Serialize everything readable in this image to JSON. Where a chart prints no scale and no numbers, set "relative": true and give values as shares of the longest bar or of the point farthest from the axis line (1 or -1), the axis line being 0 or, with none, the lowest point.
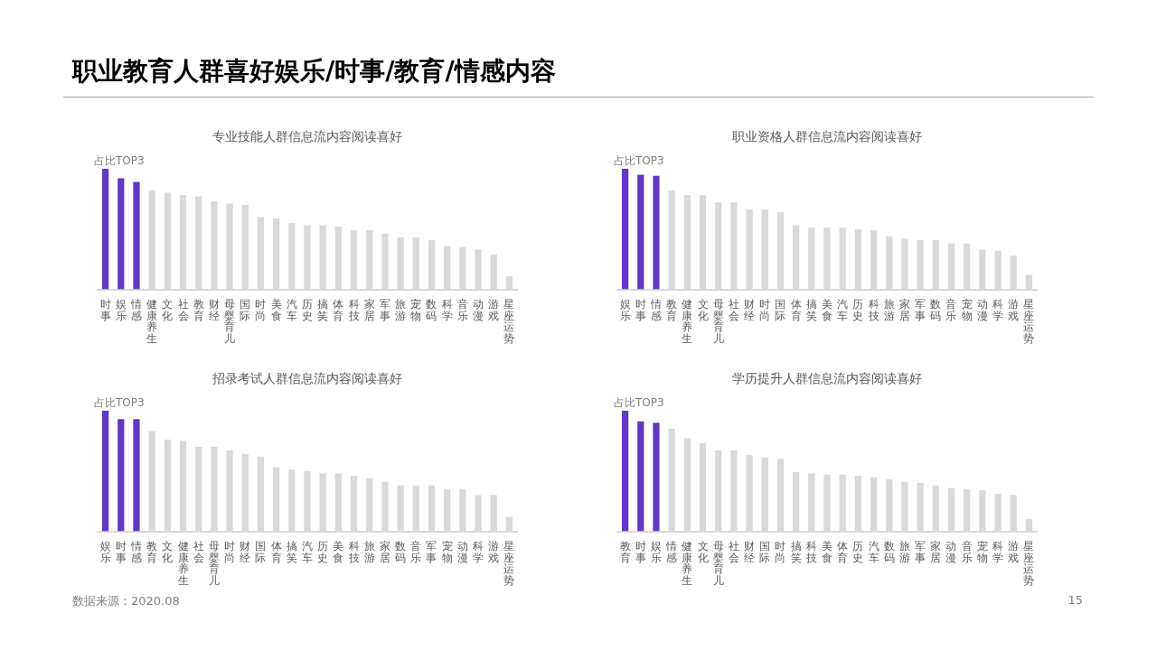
{
  "chart_data": [
    {
      "type": "other",
      "title": "职业教育人群喜好娱乐/时事/教育/情感内容",
      "annotations": [
        "数据来源：2020.08",
        "15"
      ]
    },
    {
      "type": "bar",
      "relative": true,
      "title": "专业技能人群信息流内容阅读喜好",
      "annotations": [
        "占比TOP3"
      ],
      "categories": [
        "时事",
        "娱乐",
        "情感",
        "健康养生",
        "文化",
        "社会",
        "教育",
        "财经",
        "母婴育儿",
        "国际",
        "时尚",
        "美食",
        "汽车",
        "历史",
        "搞笑",
        "体育",
        "科技",
        "家居",
        "军事",
        "旅游",
        "宠物",
        "数码",
        "科学",
        "音乐",
        "动漫",
        "游戏",
        "星座运势"
      ],
      "values": [
        1,
        0.92,
        0.89,
        0.82,
        0.8,
        0.78,
        0.77,
        0.73,
        0.71,
        0.7,
        0.6,
        0.59,
        0.55,
        0.53,
        0.53,
        0.52,
        0.49,
        0.49,
        0.46,
        0.43,
        0.43,
        0.41,
        0.36,
        0.35,
        0.33,
        0.29,
        0.11
      ],
      "colors": [
        "#6236c8",
        "#6236c8",
        "#6236c8",
        "#d9d9d9",
        "#d9d9d9",
        "#d9d9d9",
        "#d9d9d9",
        "#d9d9d9",
        "#d9d9d9",
        "#d9d9d9",
        "#d9d9d9",
        "#d9d9d9",
        "#d9d9d9",
        "#d9d9d9",
        "#d9d9d9",
        "#d9d9d9",
        "#d9d9d9",
        "#d9d9d9",
        "#d9d9d9",
        "#d9d9d9",
        "#d9d9d9",
        "#d9d9d9",
        "#d9d9d9",
        "#d9d9d9",
        "#d9d9d9",
        "#d9d9d9",
        "#d9d9d9"
      ]
    },
    {
      "type": "bar",
      "relative": true,
      "title": "职业资格人群信息流内容阅读喜好",
      "annotations": [
        "占比TOP3"
      ],
      "categories": [
        "娱乐",
        "时事",
        "情感",
        "教育",
        "健康养生",
        "文化",
        "母婴育儿",
        "社会",
        "财经",
        "时尚",
        "国际",
        "体育",
        "搞笑",
        "美食",
        "汽车",
        "历史",
        "科技",
        "旅游",
        "家居",
        "军事",
        "数码",
        "音乐",
        "宠物",
        "动漫",
        "科学",
        "游戏",
        "星座运势"
      ],
      "values": [
        1,
        0.95,
        0.94,
        0.82,
        0.78,
        0.78,
        0.72,
        0.72,
        0.66,
        0.66,
        0.64,
        0.53,
        0.51,
        0.51,
        0.51,
        0.5,
        0.49,
        0.44,
        0.42,
        0.41,
        0.41,
        0.38,
        0.38,
        0.33,
        0.32,
        0.28,
        0.12
      ],
      "colors": [
        "#6236c8",
        "#6236c8",
        "#6236c8",
        "#d9d9d9",
        "#d9d9d9",
        "#d9d9d9",
        "#d9d9d9",
        "#d9d9d9",
        "#d9d9d9",
        "#d9d9d9",
        "#d9d9d9",
        "#d9d9d9",
        "#d9d9d9",
        "#d9d9d9",
        "#d9d9d9",
        "#d9d9d9",
        "#d9d9d9",
        "#d9d9d9",
        "#d9d9d9",
        "#d9d9d9",
        "#d9d9d9",
        "#d9d9d9",
        "#d9d9d9",
        "#d9d9d9",
        "#d9d9d9",
        "#d9d9d9",
        "#d9d9d9"
      ]
    },
    {
      "type": "bar",
      "relative": true,
      "title": "招录考试人群信息流内容阅读喜好",
      "annotations": [
        "占比TOP3"
      ],
      "categories": [
        "娱乐",
        "时事",
        "情感",
        "教育",
        "文化",
        "健康养生",
        "社会",
        "母婴育儿",
        "时尚",
        "财经",
        "国际",
        "体育",
        "搞笑",
        "汽车",
        "历史",
        "美食",
        "科技",
        "旅游",
        "家居",
        "数码",
        "音乐",
        "军事",
        "宠物",
        "动漫",
        "科学",
        "游戏",
        "星座运势"
      ],
      "values": [
        1,
        0.93,
        0.93,
        0.83,
        0.76,
        0.75,
        0.7,
        0.7,
        0.67,
        0.64,
        0.62,
        0.53,
        0.51,
        0.5,
        0.48,
        0.48,
        0.46,
        0.44,
        0.41,
        0.38,
        0.38,
        0.38,
        0.35,
        0.35,
        0.3,
        0.3,
        0.12
      ],
      "colors": [
        "#6236c8",
        "#6236c8",
        "#6236c8",
        "#d9d9d9",
        "#d9d9d9",
        "#d9d9d9",
        "#d9d9d9",
        "#d9d9d9",
        "#d9d9d9",
        "#d9d9d9",
        "#d9d9d9",
        "#d9d9d9",
        "#d9d9d9",
        "#d9d9d9",
        "#d9d9d9",
        "#d9d9d9",
        "#d9d9d9",
        "#d9d9d9",
        "#d9d9d9",
        "#d9d9d9",
        "#d9d9d9",
        "#d9d9d9",
        "#d9d9d9",
        "#d9d9d9",
        "#d9d9d9",
        "#d9d9d9",
        "#d9d9d9"
      ]
    },
    {
      "type": "bar",
      "relative": true,
      "title": "学历提升人群信息流内容阅读喜好",
      "annotations": [
        "占比TOP3"
      ],
      "categories": [
        "教育",
        "时事",
        "娱乐",
        "情感",
        "健康养生",
        "文化",
        "母婴育儿",
        "社会",
        "财经",
        "国际",
        "时尚",
        "搞笑",
        "科技",
        "美食",
        "体育",
        "历史",
        "汽车",
        "数码",
        "旅游",
        "军事",
        "家居",
        "动漫",
        "音乐",
        "宠物",
        "科学",
        "游戏",
        "星座运势"
      ],
      "values": [
        1,
        0.91,
        0.9,
        0.85,
        0.77,
        0.73,
        0.67,
        0.67,
        0.63,
        0.61,
        0.6,
        0.49,
        0.48,
        0.47,
        0.47,
        0.46,
        0.45,
        0.43,
        0.41,
        0.4,
        0.38,
        0.36,
        0.35,
        0.34,
        0.31,
        0.3,
        0.1
      ],
      "colors": [
        "#6236c8",
        "#6236c8",
        "#6236c8",
        "#d9d9d9",
        "#d9d9d9",
        "#d9d9d9",
        "#d9d9d9",
        "#d9d9d9",
        "#d9d9d9",
        "#d9d9d9",
        "#d9d9d9",
        "#d9d9d9",
        "#d9d9d9",
        "#d9d9d9",
        "#d9d9d9",
        "#d9d9d9",
        "#d9d9d9",
        "#d9d9d9",
        "#d9d9d9",
        "#d9d9d9",
        "#d9d9d9",
        "#d9d9d9",
        "#d9d9d9",
        "#d9d9d9",
        "#d9d9d9",
        "#d9d9d9",
        "#d9d9d9"
      ]
    }
  ]
}
